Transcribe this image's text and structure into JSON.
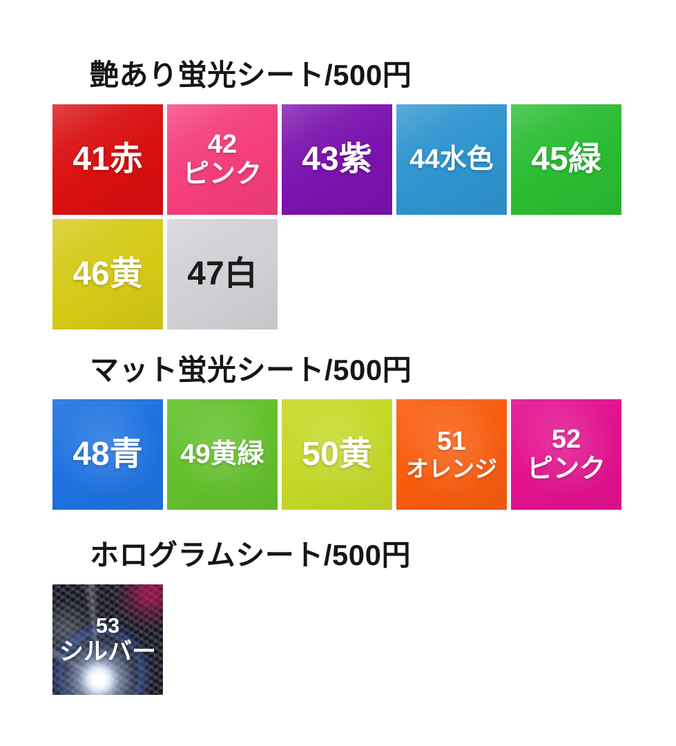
{
  "page": {
    "background": "#ffffff",
    "title_text_color": "#161616"
  },
  "sections": [
    {
      "name": "glossy-fluorescent-sheet",
      "title": "艶あり蛍光シート/500円",
      "price": "500円",
      "rows": [
        [
          {
            "id": "41",
            "lines": [
              "41赤"
            ],
            "number": "41",
            "color_name": "赤",
            "bg": "#d90f10",
            "text": "#ffffff"
          },
          {
            "id": "42",
            "lines": [
              "42",
              "ピンク"
            ],
            "number": "42",
            "color_name": "ピンク",
            "bg": "#f43e7b",
            "text": "#ffffff"
          },
          {
            "id": "43",
            "lines": [
              "43紫"
            ],
            "number": "43",
            "color_name": "紫",
            "bg": "#7b12ad",
            "text": "#ffffff"
          },
          {
            "id": "44",
            "lines": [
              "44水色"
            ],
            "number": "44",
            "color_name": "水色",
            "bg": "#2e94ce",
            "text": "#ffffff"
          },
          {
            "id": "45",
            "lines": [
              "45緑"
            ],
            "number": "45",
            "color_name": "緑",
            "bg": "#2abc32",
            "text": "#ffffff"
          }
        ],
        [
          {
            "id": "46",
            "lines": [
              "46黄"
            ],
            "number": "46",
            "color_name": "黄",
            "bg": "#d5c917",
            "text": "#ffffff"
          },
          {
            "id": "47",
            "lines": [
              "47白"
            ],
            "number": "47",
            "color_name": "白",
            "bg": "#d2d0d5",
            "text": "#1b1b1b"
          }
        ]
      ]
    },
    {
      "name": "matte-fluorescent-sheet",
      "title": "マット蛍光シート/500円",
      "price": "500円",
      "rows": [
        [
          {
            "id": "48",
            "lines": [
              "48青"
            ],
            "number": "48",
            "color_name": "青",
            "bg": "#1e72e0",
            "text": "#ffffff"
          },
          {
            "id": "49",
            "lines": [
              "49黄緑"
            ],
            "number": "49",
            "color_name": "黄緑",
            "bg": "#63c02c",
            "text": "#ffffff"
          },
          {
            "id": "50",
            "lines": [
              "50黄"
            ],
            "number": "50",
            "color_name": "黄",
            "bg": "#c4d827",
            "text": "#ffffff"
          },
          {
            "id": "51",
            "lines": [
              "51",
              "オレンジ"
            ],
            "number": "51",
            "color_name": "オレンジ",
            "bg": "#f85c0e",
            "text": "#ffffff"
          },
          {
            "id": "52",
            "lines": [
              "52",
              "ピンク"
            ],
            "number": "52",
            "color_name": "ピンク",
            "bg": "#e2118e",
            "text": "#ffffff"
          }
        ]
      ]
    },
    {
      "name": "hologram-sheet",
      "title": "ホログラムシート/500円",
      "price": "500円",
      "rows": [
        [
          {
            "id": "53",
            "lines": [
              "53",
              "シルバー"
            ],
            "number": "53",
            "color_name": "シルバー",
            "bg": "holographic-silver-dark",
            "holo": true,
            "text": "#ffffff"
          }
        ]
      ]
    }
  ]
}
